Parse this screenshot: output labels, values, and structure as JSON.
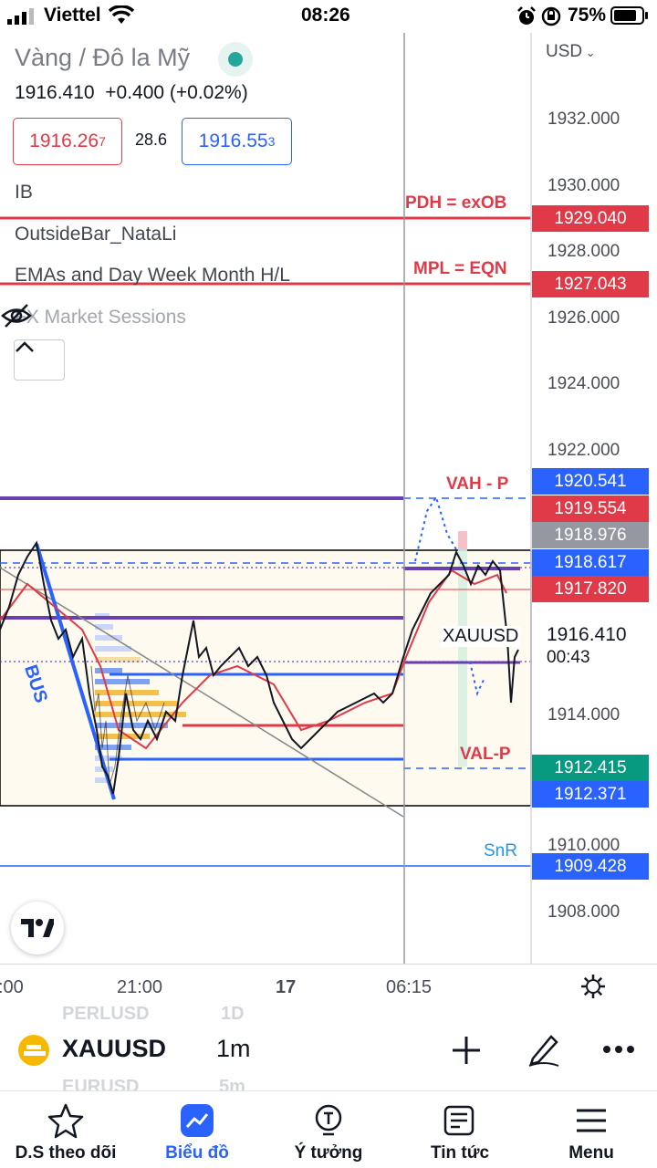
{
  "status_bar": {
    "carrier": "Viettel",
    "time": "08:26",
    "battery": "75%",
    "icons": [
      "signal-icon",
      "wifi-icon",
      "alarm-icon",
      "orientation-lock-icon",
      "battery-icon"
    ]
  },
  "chart": {
    "title": "Vàng / Đô la Mỹ",
    "market_status_color": "#26a69a",
    "price": "1916.410",
    "change": "+0.400 (+0.02%)",
    "bid_main": "1916.26",
    "bid_sup": "7",
    "spread": "28.6",
    "ask_main": "1916.55",
    "ask_sup": "3",
    "currency": "USD",
    "indicators": [
      "IB",
      "OutsideBar_NataLi",
      "EMAs and Day Week Month H/L",
      "FX Market Sessions"
    ],
    "symbol_label": "XAUUSD",
    "bus_label": "BUS",
    "annotations": {
      "pdh": "PDH = exOB",
      "mpl": "MPL = EQN",
      "vah": "VAH - P",
      "val": "VAL-P",
      "snr": "SnR"
    },
    "price_axis": [
      "1932.000",
      "1930.000",
      "1928.000",
      "1926.000",
      "1924.000",
      "1922.000",
      "1914.000",
      "1910.000",
      "1908.000"
    ],
    "price_labels": [
      {
        "value": "1929.040",
        "color": "#e03a48"
      },
      {
        "value": "1927.043",
        "color": "#e03a48"
      },
      {
        "value": "1920.541",
        "color": "#2962ff"
      },
      {
        "value": "1919.554",
        "color": "#e03a48"
      },
      {
        "value": "1918.976",
        "color": "#9598a1"
      },
      {
        "value": "1918.617",
        "color": "#2962ff"
      },
      {
        "value": "1917.820",
        "color": "#e03a48"
      },
      {
        "value": "1912.415",
        "color": "#089981"
      },
      {
        "value": "1912.371",
        "color": "#2962ff"
      },
      {
        "value": "1909.428",
        "color": "#2962ff"
      }
    ],
    "last_price": "1916.410",
    "countdown": "00:43",
    "time_axis": [
      ":00",
      "21:00",
      "17",
      "06:15"
    ]
  },
  "toolbar": {
    "symbol": "XAUUSD",
    "interval": "1m",
    "ghost_above": "PERLUSD",
    "ghost_above_interval": "1D",
    "ghost_below": "EURUSD",
    "ghost_below_interval": "5m"
  },
  "nav": {
    "items": [
      {
        "label": "D.S theo dõi",
        "icon": "star-icon"
      },
      {
        "label": "Biểu đồ",
        "icon": "chart-icon"
      },
      {
        "label": "Ý tưởng",
        "icon": "lightbulb-icon"
      },
      {
        "label": "Tin tức",
        "icon": "newspaper-icon"
      },
      {
        "label": "Menu",
        "icon": "hamburger-icon"
      }
    ],
    "active": "Biểu đồ",
    "accent": "#2962ff"
  }
}
